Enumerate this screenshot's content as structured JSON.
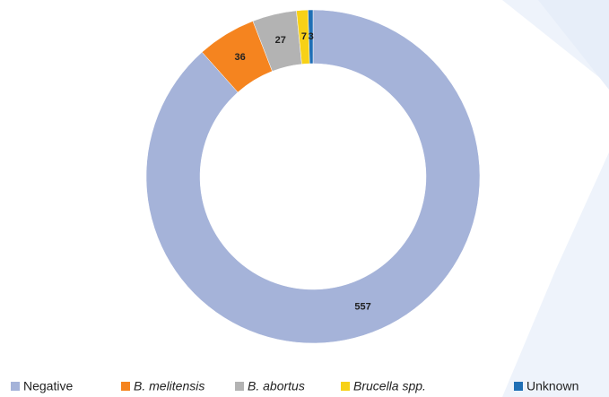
{
  "chart_data": {
    "type": "pie",
    "categories": [
      "Negative",
      "B. melitensis",
      "B. abortus",
      "Brucella spp.",
      "Unknown"
    ],
    "values": [
      557,
      36,
      27,
      7,
      3
    ],
    "colors": [
      "#a5b3d9",
      "#f5841f",
      "#b3b3b3",
      "#f7d117",
      "#1f6fb5"
    ],
    "donut": true,
    "legend": "bottom"
  }
}
